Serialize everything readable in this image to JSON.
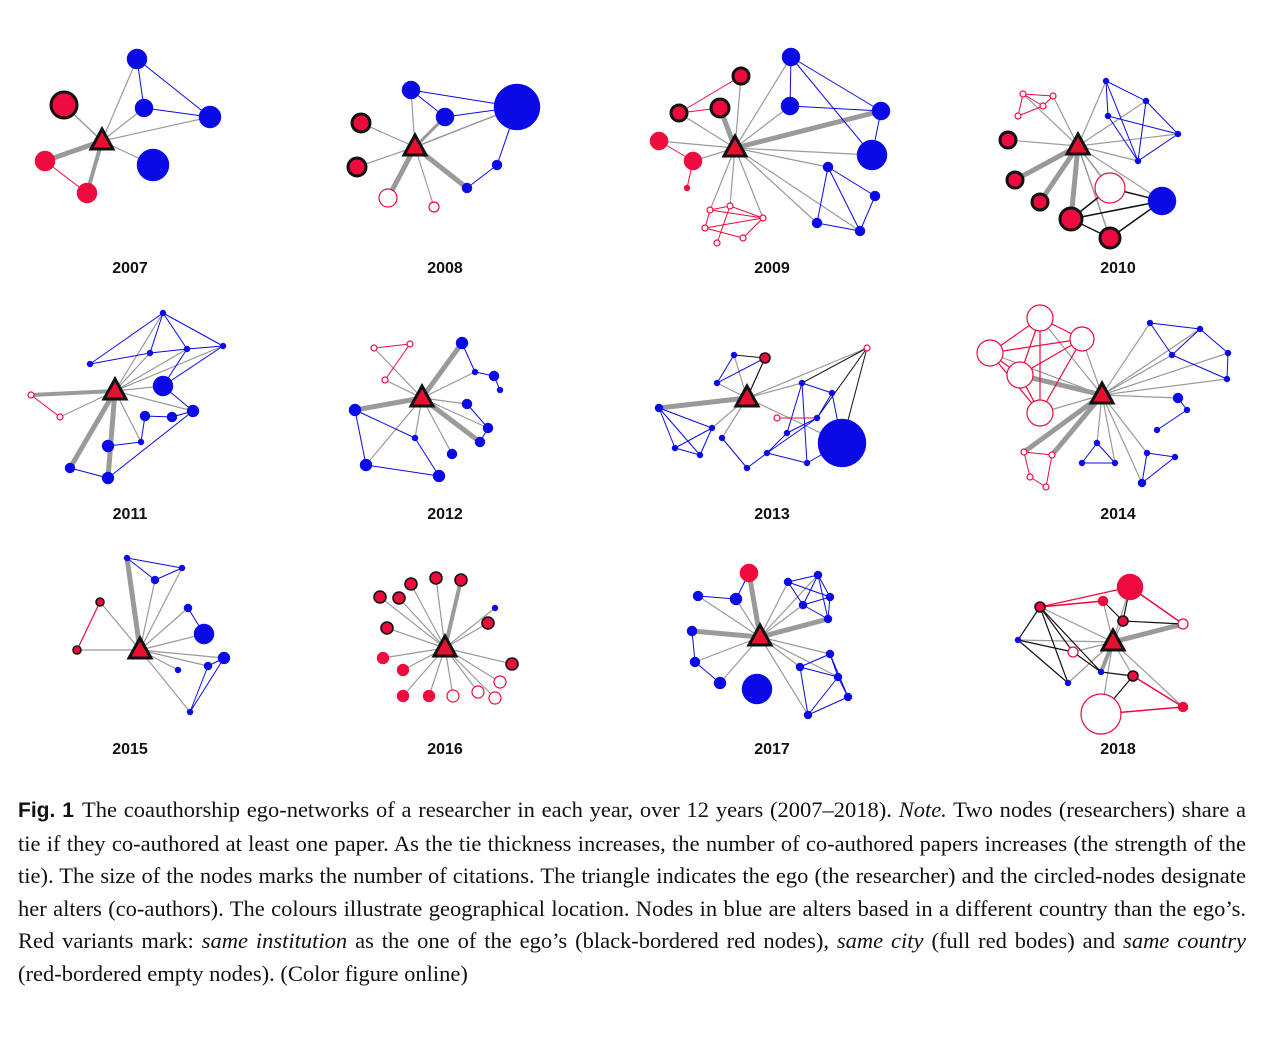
{
  "figure": {
    "colors": {
      "blue": "#0a0ae6",
      "red": "#ee0a3c",
      "ego_fill": "#e8102e",
      "tie_gray": "#9a9a9a",
      "border_black": "#111111"
    },
    "panels": [
      {
        "year": "2007"
      },
      {
        "year": "2008"
      },
      {
        "year": "2009"
      },
      {
        "year": "2010"
      },
      {
        "year": "2011"
      },
      {
        "year": "2012"
      },
      {
        "year": "2013"
      },
      {
        "year": "2014"
      },
      {
        "year": "2015"
      },
      {
        "year": "2016"
      },
      {
        "year": "2017"
      },
      {
        "year": "2018"
      }
    ]
  },
  "caption": {
    "label": "Fig. 1",
    "text_1": "The coauthorship ego-networks of a researcher in each year, over 12 years (2007–2018). ",
    "note_label": "Note.",
    "text_2": " Two nodes (researchers) share a tie if they co-authored at least one paper. As the tie thickness increases, the number of co-authored papers increases (the strength of the tie). The size of the nodes marks the number of citations. The triangle indicates the ego (the researcher) and the circled-nodes designate her alters (co-authors). The colours illustrate geographical location. Nodes in blue are alters based in a different country than the ego’s. Red variants mark: ",
    "same_institution": "same institution",
    "text_3": " as the one of the ego’s (black-bordered red nodes), ",
    "same_city": "same city",
    "text_4": " (full red bodes) and ",
    "same_country": "same country",
    "text_5": " (red-bordered empty nodes). (Color figure online)"
  }
}
